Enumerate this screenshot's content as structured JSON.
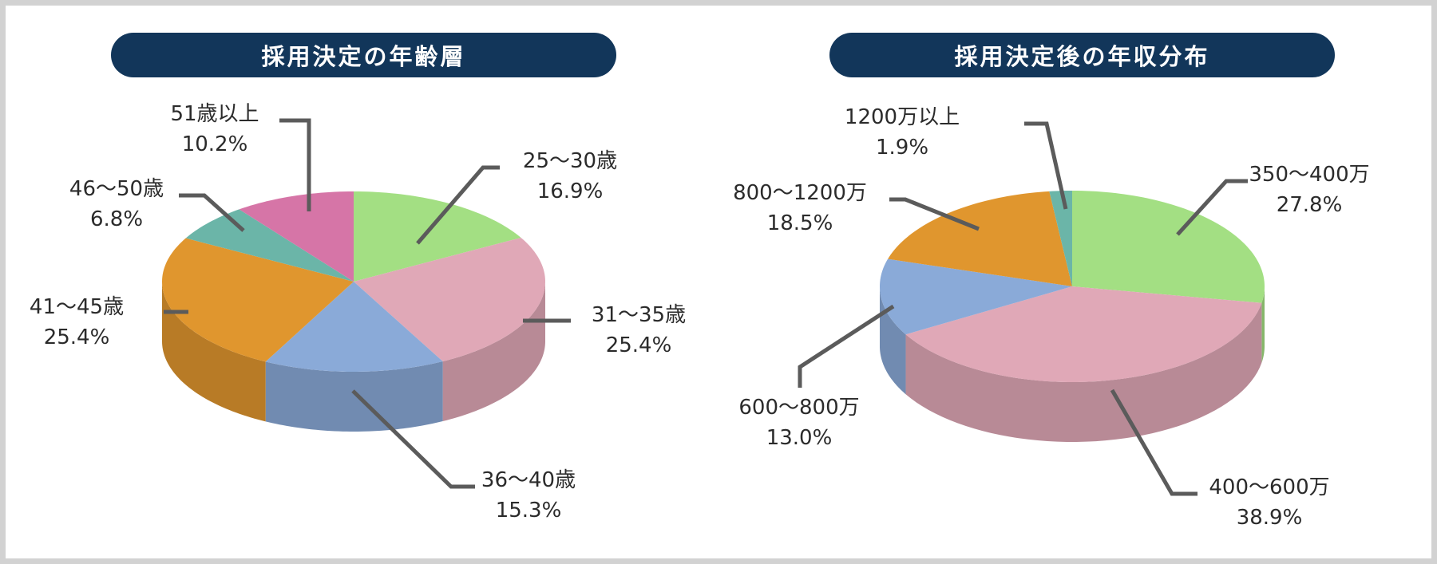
{
  "chart_data": [
    {
      "type": "pie",
      "title": "採用決定の年齢層",
      "slices": [
        {
          "label": "25〜30歳",
          "value": 16.9,
          "value_label": "16.9%",
          "color": "#a3df83"
        },
        {
          "label": "31〜35歳",
          "value": 25.4,
          "value_label": "25.4%",
          "color": "#e0a8b7"
        },
        {
          "label": "36〜40歳",
          "value": 15.3,
          "value_label": "15.3%",
          "color": "#8aaad8"
        },
        {
          "label": "41〜45歳",
          "value": 25.4,
          "value_label": "25.4%",
          "color": "#e0962e"
        },
        {
          "label": "46〜50歳",
          "value": 6.8,
          "value_label": "6.8%",
          "color": "#6bb5a8"
        },
        {
          "label": "51歳以上",
          "value": 10.2,
          "value_label": "10.2%",
          "color": "#d675a7"
        }
      ]
    },
    {
      "type": "pie",
      "title": "採用決定後の年収分布",
      "slices": [
        {
          "label": "350〜400万",
          "value": 27.8,
          "value_label": "27.8%",
          "color": "#a3df83"
        },
        {
          "label": "400〜600万",
          "value": 38.9,
          "value_label": "38.9%",
          "color": "#e0a8b7"
        },
        {
          "label": "600〜800万",
          "value": 13.0,
          "value_label": "13.0%",
          "color": "#8aaad8"
        },
        {
          "label": "800〜1200万",
          "value": 18.5,
          "value_label": "18.5%",
          "color": "#e0962e"
        },
        {
          "label": "1200万以上",
          "value": 1.9,
          "value_label": "1.9%",
          "color": "#6bb5a8"
        }
      ]
    }
  ]
}
